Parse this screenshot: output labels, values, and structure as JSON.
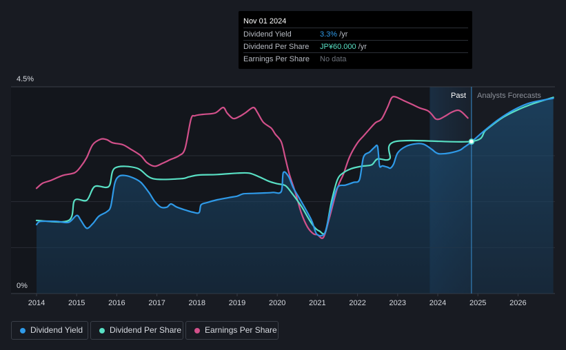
{
  "chart_data": {
    "type": "line",
    "title": "",
    "y_axis": {
      "min": 0,
      "max": 4.5,
      "top_label": "4.5%",
      "bottom_label": "0%"
    },
    "x_axis": {
      "domain": [
        2014,
        2026.88
      ],
      "ticks": [
        {
          "value": 2014,
          "label": "2014"
        },
        {
          "value": 2015,
          "label": "2015"
        },
        {
          "value": 2016,
          "label": "2016"
        },
        {
          "value": 2017,
          "label": "2017"
        },
        {
          "value": 2018,
          "label": "2018"
        },
        {
          "value": 2019,
          "label": "2019"
        },
        {
          "value": 2020,
          "label": "2020"
        },
        {
          "value": 2021,
          "label": "2021"
        },
        {
          "value": 2022,
          "label": "2022"
        },
        {
          "value": 2023,
          "label": "2023"
        },
        {
          "value": 2024,
          "label": "2024"
        },
        {
          "value": 2025,
          "label": "2025"
        },
        {
          "value": 2026,
          "label": "2026"
        }
      ]
    },
    "regions": {
      "past_label": "Past",
      "forecast_label": "Analysts Forecasts",
      "highlight_start": 2023.8,
      "divider": 2024.84
    },
    "series": [
      {
        "name": "Dividend Yield",
        "key": "yield",
        "color": "#2f9ae8",
        "filled": true,
        "points": [
          [
            2014.0,
            1.5
          ],
          [
            2014.1,
            1.57
          ],
          [
            2014.5,
            1.57
          ],
          [
            2014.8,
            1.55
          ],
          [
            2015.0,
            1.7
          ],
          [
            2015.1,
            1.6
          ],
          [
            2015.25,
            1.42
          ],
          [
            2015.4,
            1.52
          ],
          [
            2015.55,
            1.68
          ],
          [
            2015.75,
            1.78
          ],
          [
            2015.85,
            1.9
          ],
          [
            2015.95,
            2.4
          ],
          [
            2016.05,
            2.55
          ],
          [
            2016.2,
            2.57
          ],
          [
            2016.4,
            2.52
          ],
          [
            2016.6,
            2.42
          ],
          [
            2016.8,
            2.2
          ],
          [
            2016.95,
            2.0
          ],
          [
            2017.1,
            1.88
          ],
          [
            2017.25,
            1.88
          ],
          [
            2017.35,
            1.95
          ],
          [
            2017.5,
            1.88
          ],
          [
            2017.7,
            1.82
          ],
          [
            2017.9,
            1.77
          ],
          [
            2018.05,
            1.76
          ],
          [
            2018.1,
            1.93
          ],
          [
            2018.25,
            1.98
          ],
          [
            2018.5,
            2.04
          ],
          [
            2018.8,
            2.09
          ],
          [
            2019.0,
            2.12
          ],
          [
            2019.15,
            2.17
          ],
          [
            2019.4,
            2.18
          ],
          [
            2019.7,
            2.19
          ],
          [
            2019.9,
            2.2
          ],
          [
            2020.1,
            2.22
          ],
          [
            2020.15,
            2.63
          ],
          [
            2020.28,
            2.55
          ],
          [
            2020.4,
            2.3
          ],
          [
            2020.6,
            2.0
          ],
          [
            2020.85,
            1.6
          ],
          [
            2020.95,
            1.35
          ],
          [
            2021.0,
            1.28
          ],
          [
            2021.1,
            1.26
          ],
          [
            2021.2,
            1.35
          ],
          [
            2021.35,
            1.9
          ],
          [
            2021.5,
            2.31
          ],
          [
            2021.7,
            2.36
          ],
          [
            2021.9,
            2.42
          ],
          [
            2022.05,
            2.48
          ],
          [
            2022.15,
            2.97
          ],
          [
            2022.3,
            3.08
          ],
          [
            2022.42,
            3.18
          ],
          [
            2022.5,
            3.2
          ],
          [
            2022.55,
            2.78
          ],
          [
            2022.62,
            2.78
          ],
          [
            2022.75,
            2.75
          ],
          [
            2022.82,
            2.73
          ],
          [
            2022.9,
            2.82
          ],
          [
            2023.0,
            3.06
          ],
          [
            2023.2,
            3.2
          ],
          [
            2023.45,
            3.26
          ],
          [
            2023.65,
            3.25
          ],
          [
            2023.85,
            3.14
          ],
          [
            2023.95,
            3.07
          ],
          [
            2024.05,
            3.04
          ],
          [
            2024.3,
            3.06
          ],
          [
            2024.55,
            3.12
          ],
          [
            2024.65,
            3.18
          ],
          [
            2024.84,
            3.3
          ],
          [
            2025.1,
            3.5
          ],
          [
            2025.5,
            3.78
          ],
          [
            2025.9,
            4.0
          ],
          [
            2026.3,
            4.15
          ],
          [
            2026.88,
            4.25
          ]
        ]
      },
      {
        "name": "Dividend Per Share",
        "key": "dps",
        "color": "#59e0c4",
        "filled": false,
        "points": [
          [
            2014.0,
            1.59
          ],
          [
            2014.8,
            1.59
          ],
          [
            2014.95,
            2.03
          ],
          [
            2015.25,
            2.03
          ],
          [
            2015.45,
            2.33
          ],
          [
            2015.8,
            2.33
          ],
          [
            2015.95,
            2.73
          ],
          [
            2016.5,
            2.73
          ],
          [
            2016.9,
            2.5
          ],
          [
            2017.6,
            2.5
          ],
          [
            2017.8,
            2.54
          ],
          [
            2018.05,
            2.58
          ],
          [
            2018.5,
            2.59
          ],
          [
            2019.0,
            2.62
          ],
          [
            2019.3,
            2.62
          ],
          [
            2019.55,
            2.54
          ],
          [
            2019.8,
            2.44
          ],
          [
            2020.0,
            2.39
          ],
          [
            2020.2,
            2.35
          ],
          [
            2020.35,
            2.2
          ],
          [
            2020.6,
            1.9
          ],
          [
            2020.8,
            1.6
          ],
          [
            2020.95,
            1.42
          ],
          [
            2021.05,
            1.36
          ],
          [
            2021.2,
            1.34
          ],
          [
            2021.35,
            2.0
          ],
          [
            2021.5,
            2.48
          ],
          [
            2021.65,
            2.63
          ],
          [
            2021.85,
            2.72
          ],
          [
            2022.1,
            2.77
          ],
          [
            2022.35,
            2.8
          ],
          [
            2022.5,
            2.93
          ],
          [
            2022.8,
            2.93
          ],
          [
            2022.95,
            3.31
          ],
          [
            2024.84,
            3.31
          ],
          [
            2025.2,
            3.56
          ],
          [
            2025.6,
            3.82
          ],
          [
            2026.0,
            4.0
          ],
          [
            2026.4,
            4.14
          ],
          [
            2026.88,
            4.27
          ]
        ]
      },
      {
        "name": "Earnings Per Share",
        "key": "eps",
        "color": "#d2508a",
        "filled": false,
        "points": [
          [
            2014.0,
            2.29
          ],
          [
            2014.15,
            2.4
          ],
          [
            2014.35,
            2.46
          ],
          [
            2014.65,
            2.57
          ],
          [
            2014.95,
            2.63
          ],
          [
            2015.1,
            2.76
          ],
          [
            2015.25,
            2.96
          ],
          [
            2015.4,
            3.24
          ],
          [
            2015.6,
            3.36
          ],
          [
            2015.75,
            3.35
          ],
          [
            2015.9,
            3.28
          ],
          [
            2016.15,
            3.24
          ],
          [
            2016.35,
            3.14
          ],
          [
            2016.6,
            3.0
          ],
          [
            2016.75,
            2.85
          ],
          [
            2016.95,
            2.77
          ],
          [
            2017.15,
            2.84
          ],
          [
            2017.35,
            2.92
          ],
          [
            2017.55,
            3.0
          ],
          [
            2017.7,
            3.15
          ],
          [
            2017.85,
            3.8
          ],
          [
            2017.95,
            3.87
          ],
          [
            2018.15,
            3.9
          ],
          [
            2018.45,
            3.93
          ],
          [
            2018.65,
            4.05
          ],
          [
            2018.75,
            3.93
          ],
          [
            2018.9,
            3.81
          ],
          [
            2019.05,
            3.85
          ],
          [
            2019.2,
            3.93
          ],
          [
            2019.4,
            4.05
          ],
          [
            2019.5,
            3.95
          ],
          [
            2019.65,
            3.73
          ],
          [
            2019.85,
            3.6
          ],
          [
            2019.95,
            3.47
          ],
          [
            2020.1,
            3.3
          ],
          [
            2020.2,
            2.95
          ],
          [
            2020.3,
            2.6
          ],
          [
            2020.45,
            2.2
          ],
          [
            2020.6,
            1.75
          ],
          [
            2020.75,
            1.45
          ],
          [
            2020.9,
            1.3
          ],
          [
            2021.0,
            1.28
          ],
          [
            2021.15,
            1.22
          ],
          [
            2021.3,
            1.65
          ],
          [
            2021.5,
            2.3
          ],
          [
            2021.65,
            2.6
          ],
          [
            2021.8,
            2.97
          ],
          [
            2022.0,
            3.28
          ],
          [
            2022.15,
            3.43
          ],
          [
            2022.3,
            3.58
          ],
          [
            2022.45,
            3.72
          ],
          [
            2022.6,
            3.8
          ],
          [
            2022.75,
            4.06
          ],
          [
            2022.85,
            4.26
          ],
          [
            2022.95,
            4.28
          ],
          [
            2023.15,
            4.2
          ],
          [
            2023.35,
            4.12
          ],
          [
            2023.55,
            4.04
          ],
          [
            2023.75,
            3.98
          ],
          [
            2023.85,
            3.9
          ],
          [
            2023.95,
            3.8
          ],
          [
            2024.05,
            3.8
          ],
          [
            2024.2,
            3.87
          ],
          [
            2024.35,
            3.95
          ],
          [
            2024.5,
            3.99
          ],
          [
            2024.6,
            3.95
          ],
          [
            2024.75,
            3.82
          ]
        ]
      }
    ],
    "markers": [
      {
        "key": "yield",
        "x": 2024.84,
        "y": 3.3
      },
      {
        "key": "dps",
        "x": 2024.84,
        "y": 3.31
      }
    ]
  },
  "tooltip": {
    "date": "Nov 01 2024",
    "rows": [
      {
        "label": "Dividend Yield",
        "value": "3.3%",
        "unit": " /yr"
      },
      {
        "label": "Dividend Per Share",
        "value": "JP¥60.000",
        "unit": " /yr"
      },
      {
        "label": "Earnings Per Share",
        "value": "No data",
        "unit": ""
      }
    ]
  },
  "legend": [
    {
      "label": "Dividend Yield",
      "color": "#2f9ae8"
    },
    {
      "label": "Dividend Per Share",
      "color": "#59e0c4"
    },
    {
      "label": "Earnings Per Share",
      "color": "#d2508a"
    }
  ]
}
